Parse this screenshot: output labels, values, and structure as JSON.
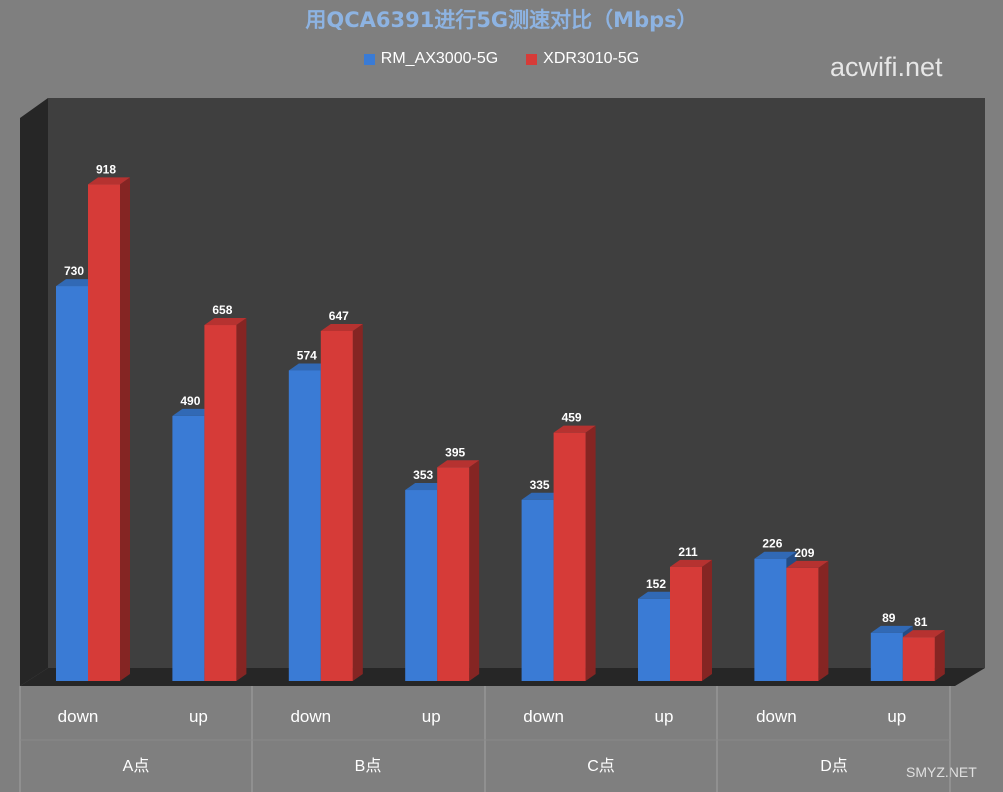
{
  "watermark": "acwifi.net",
  "watermark_bottom": "SMYZ.NET",
  "colors": {
    "background": "#7f7f7f",
    "plot_back": "#3f3f3f",
    "series1": "#3a7bd5",
    "series2": "#d63b38",
    "title": "#8db3e2"
  },
  "chart_data": {
    "type": "bar",
    "title": "用QCA6391进行5G测速对比（Mbps）",
    "categories": [
      "down",
      "up",
      "down",
      "up",
      "down",
      "up",
      "down",
      "up"
    ],
    "groups": [
      "A点",
      "B点",
      "C点",
      "D点"
    ],
    "series": [
      {
        "name": "RM_AX3000-5G",
        "values": [
          730,
          490,
          574,
          353,
          335,
          152,
          226,
          89
        ]
      },
      {
        "name": "XDR3010-5G",
        "values": [
          918,
          658,
          647,
          395,
          459,
          211,
          209,
          81
        ]
      }
    ],
    "ylim": [
      0,
      1000
    ],
    "grid": false,
    "legend_position": "top"
  }
}
